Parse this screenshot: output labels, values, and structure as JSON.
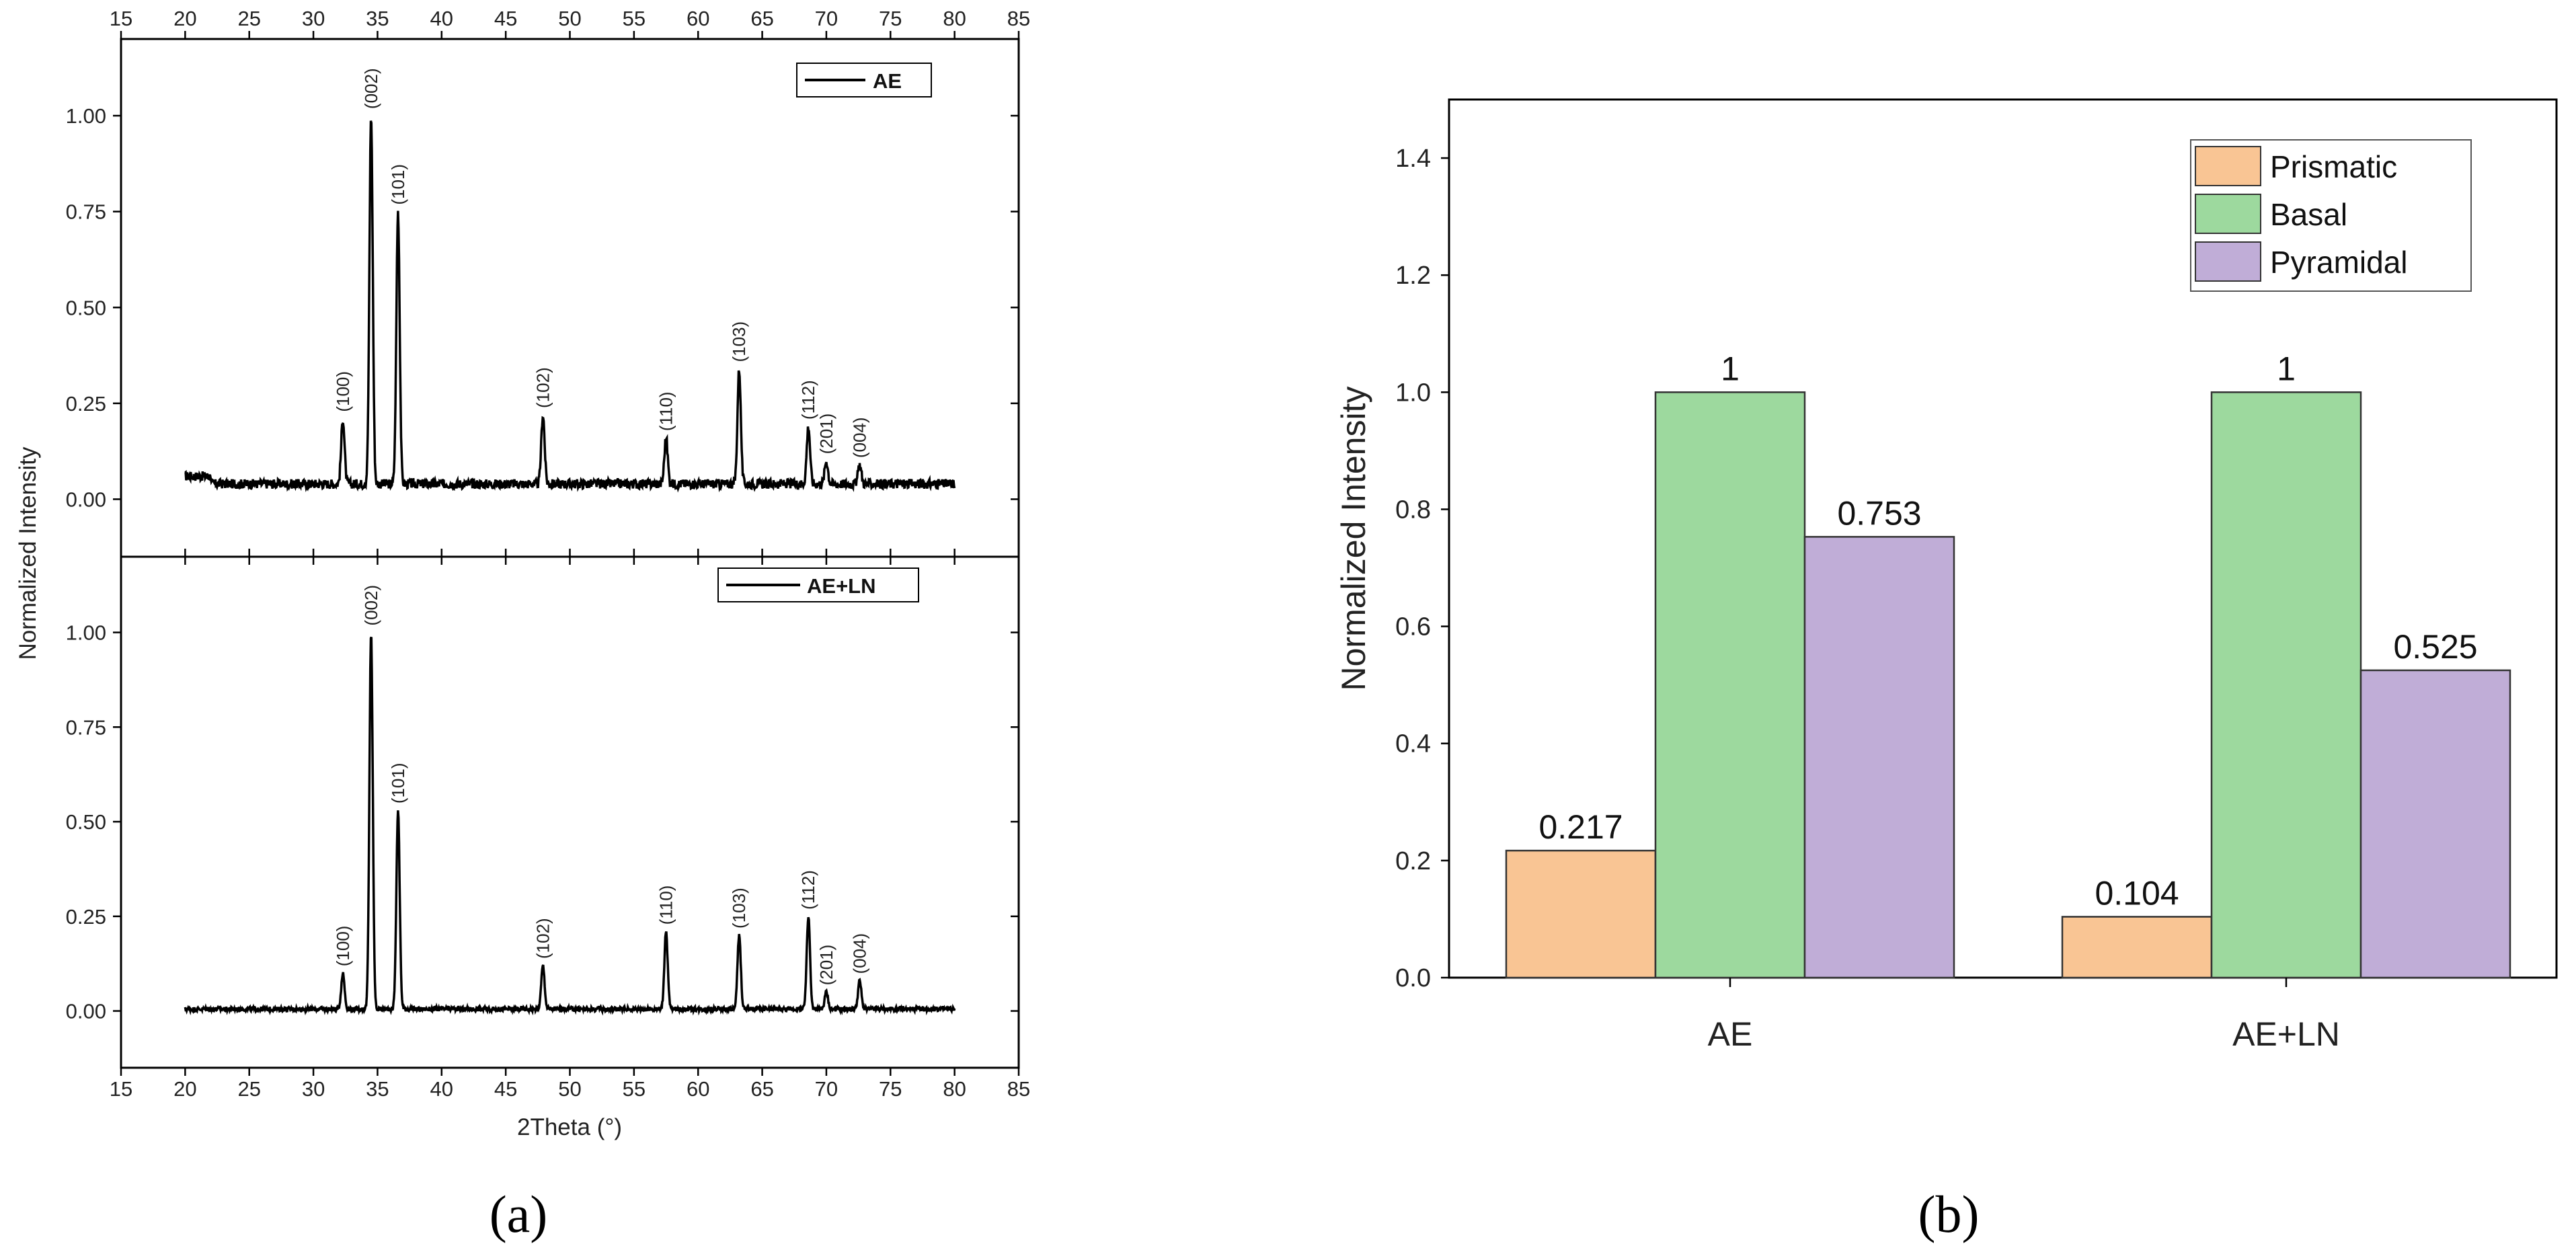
{
  "chart_data": [
    {
      "type": "line",
      "panel_caption": "(a)",
      "xlabel": "2Theta (°)",
      "ylabel": "Normalized Intensity",
      "xlim": [
        15,
        85
      ],
      "ylim": [
        -0.15,
        1.2
      ],
      "x_ticks": [
        "15",
        "20",
        "25",
        "30",
        "35",
        "40",
        "45",
        "50",
        "55",
        "60",
        "65",
        "70",
        "75",
        "80",
        "85"
      ],
      "y_ticks": [
        "0.00",
        "0.25",
        "0.50",
        "0.75",
        "1.00"
      ],
      "grid": false,
      "subplots": [
        {
          "legend": "AE",
          "baseline": 0.04,
          "peaks": [
            {
              "label": "(100)",
              "x": 32.3,
              "y": 0.21
            },
            {
              "label": "(002)",
              "x": 34.5,
              "y": 1.0
            },
            {
              "label": "(101)",
              "x": 36.6,
              "y": 0.75
            },
            {
              "label": "(102)",
              "x": 47.9,
              "y": 0.22
            },
            {
              "label": "(110)",
              "x": 57.5,
              "y": 0.16
            },
            {
              "label": "(103)",
              "x": 63.2,
              "y": 0.34
            },
            {
              "label": "(112)",
              "x": 68.6,
              "y": 0.19
            },
            {
              "label": "(201)",
              "x": 70.0,
              "y": 0.1
            },
            {
              "label": "(004)",
              "x": 72.6,
              "y": 0.09
            }
          ]
        },
        {
          "legend": "AE+LN",
          "baseline": 0.005,
          "peaks": [
            {
              "label": "(100)",
              "x": 32.3,
              "y": 0.1
            },
            {
              "label": "(002)",
              "x": 34.5,
              "y": 1.0
            },
            {
              "label": "(101)",
              "x": 36.6,
              "y": 0.53
            },
            {
              "label": "(102)",
              "x": 47.9,
              "y": 0.12
            },
            {
              "label": "(110)",
              "x": 57.5,
              "y": 0.21
            },
            {
              "label": "(103)",
              "x": 63.2,
              "y": 0.2
            },
            {
              "label": "(112)",
              "x": 68.6,
              "y": 0.25
            },
            {
              "label": "(201)",
              "x": 70.0,
              "y": 0.05
            },
            {
              "label": "(004)",
              "x": 72.6,
              "y": 0.08
            }
          ]
        }
      ]
    },
    {
      "type": "bar",
      "panel_caption": "(b)",
      "categories": [
        "AE",
        "AE+LN"
      ],
      "ylabel": "Normalized Intensity",
      "xlabel": "",
      "ylim": [
        0,
        1.5
      ],
      "y_ticks": [
        "0.0",
        "0.2",
        "0.4",
        "0.6",
        "0.8",
        "1.0",
        "1.2",
        "1.4"
      ],
      "legend_position": "top-right",
      "series": [
        {
          "name": "Prismatic",
          "values": [
            0.217,
            0.104
          ],
          "labels": [
            "0.217",
            "0.104"
          ],
          "color": "#f9c594"
        },
        {
          "name": "Basal",
          "values": [
            1,
            1
          ],
          "labels": [
            "1",
            "1"
          ],
          "color": "#9dd99e"
        },
        {
          "name": "Pyramidal",
          "values": [
            0.753,
            0.525
          ],
          "labels": [
            "0.753",
            "0.525"
          ],
          "color": "#c0add7"
        }
      ]
    }
  ]
}
